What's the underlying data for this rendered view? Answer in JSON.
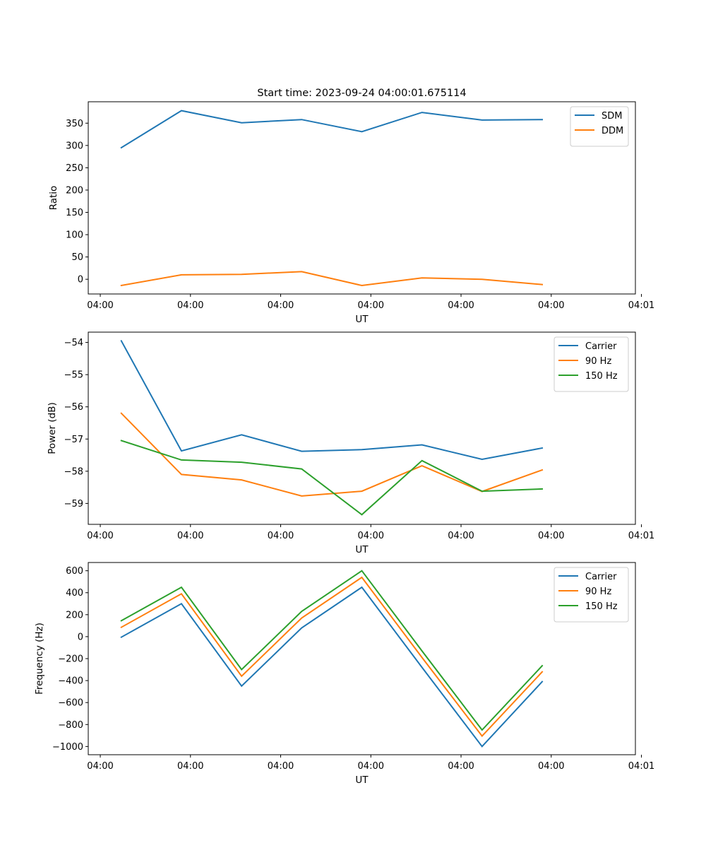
{
  "figure_title": "Start time: 2023-09-24 04:00:01.675114",
  "chart_data": [
    {
      "type": "line",
      "title": "",
      "xlabel": "UT",
      "ylabel": "Ratio",
      "xlim": [
        -0.55,
        8.55
      ],
      "ylim": [
        -33,
        398
      ],
      "x_ticks": [
        {
          "value": -0.35,
          "label": "04:00"
        },
        {
          "value": 1.15,
          "label": "04:00"
        },
        {
          "value": 2.65,
          "label": "04:00"
        },
        {
          "value": 4.15,
          "label": "04:00"
        },
        {
          "value": 5.65,
          "label": "04:00"
        },
        {
          "value": 7.15,
          "label": "04:00"
        },
        {
          "value": 8.65,
          "label": "04:01"
        }
      ],
      "y_ticks": [
        0,
        50,
        100,
        150,
        200,
        250,
        300,
        350
      ],
      "x": [
        0,
        1,
        2,
        3,
        4,
        5,
        6,
        7
      ],
      "series": [
        {
          "name": "SDM",
          "color": "#1f77b4",
          "values": [
            295,
            378,
            351,
            358,
            331,
            374,
            357,
            358
          ]
        },
        {
          "name": "DDM",
          "color": "#ff7f0e",
          "values": [
            -14,
            10,
            11,
            17,
            -14,
            3,
            0,
            -12
          ]
        }
      ],
      "legend": "top-right"
    },
    {
      "type": "line",
      "title": "",
      "xlabel": "UT",
      "ylabel": "Power (dB)",
      "xlim": [
        -0.55,
        8.55
      ],
      "ylim": [
        -59.65,
        -53.68
      ],
      "x_ticks": [
        {
          "value": -0.35,
          "label": "04:00"
        },
        {
          "value": 1.15,
          "label": "04:00"
        },
        {
          "value": 2.65,
          "label": "04:00"
        },
        {
          "value": 4.15,
          "label": "04:00"
        },
        {
          "value": 5.65,
          "label": "04:00"
        },
        {
          "value": 7.15,
          "label": "04:00"
        },
        {
          "value": 8.65,
          "label": "04:01"
        }
      ],
      "y_ticks": [
        -59,
        -58,
        -57,
        -56,
        -55,
        -54
      ],
      "y_tick_labels": [
        "−59",
        "−58",
        "−57",
        "−56",
        "−55",
        "−54"
      ],
      "x": [
        0,
        1,
        2,
        3,
        4,
        5,
        6,
        7
      ],
      "series": [
        {
          "name": "Carrier",
          "color": "#1f77b4",
          "values": [
            -53.95,
            -57.37,
            -56.87,
            -57.38,
            -57.33,
            -57.18,
            -57.63,
            -57.28
          ]
        },
        {
          "name": "90 Hz",
          "color": "#ff7f0e",
          "values": [
            -56.2,
            -58.1,
            -58.27,
            -58.77,
            -58.62,
            -57.83,
            -58.63,
            -57.96
          ]
        },
        {
          "name": "150 Hz",
          "color": "#2ca02c",
          "values": [
            -57.05,
            -57.65,
            -57.72,
            -57.93,
            -59.35,
            -57.67,
            -58.62,
            -58.55
          ]
        }
      ],
      "legend": "top-right"
    },
    {
      "type": "line",
      "title": "",
      "xlabel": "UT",
      "ylabel": "Frequency (Hz)",
      "xlim": [
        -0.55,
        8.55
      ],
      "ylim": [
        -1075,
        675
      ],
      "x_ticks": [
        {
          "value": -0.35,
          "label": "04:00"
        },
        {
          "value": 1.15,
          "label": "04:00"
        },
        {
          "value": 2.65,
          "label": "04:00"
        },
        {
          "value": 4.15,
          "label": "04:00"
        },
        {
          "value": 5.65,
          "label": "04:00"
        },
        {
          "value": 7.15,
          "label": "04:00"
        },
        {
          "value": 8.65,
          "label": "04:01"
        }
      ],
      "y_ticks": [
        -1000,
        -800,
        -600,
        -400,
        -200,
        0,
        200,
        400,
        600
      ],
      "y_tick_labels": [
        "−1000",
        "−800",
        "−600",
        "−400",
        "−200",
        "0",
        "200",
        "400",
        "600"
      ],
      "x": [
        0,
        1,
        2,
        3,
        4,
        5,
        6,
        7
      ],
      "series": [
        {
          "name": "Carrier",
          "color": "#1f77b4",
          "values": [
            -5,
            300,
            -450,
            80,
            450,
            -280,
            -1000,
            -410
          ]
        },
        {
          "name": "90 Hz",
          "color": "#ff7f0e",
          "values": [
            85,
            390,
            -360,
            170,
            540,
            -190,
            -905,
            -320
          ]
        },
        {
          "name": "150 Hz",
          "color": "#2ca02c",
          "values": [
            145,
            450,
            -300,
            230,
            600,
            -130,
            -850,
            -265
          ]
        }
      ],
      "legend": "top-right"
    }
  ]
}
